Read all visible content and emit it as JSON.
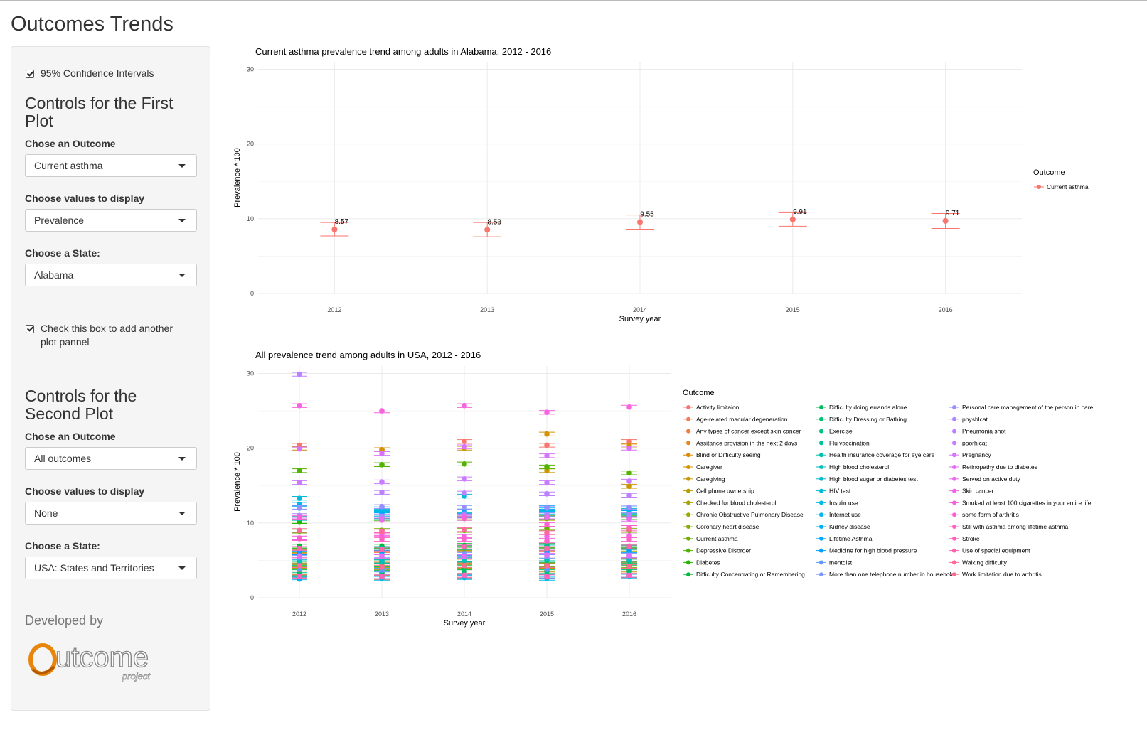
{
  "page": {
    "title": "Outcomes Trends"
  },
  "sidebar": {
    "ci_label": "95% Confidence Intervals",
    "ci_checked": true,
    "first": {
      "heading": "Controls for the First Plot",
      "outcome_label": "Chose an Outcome",
      "outcome_value": "Current asthma",
      "values_label": "Choose values to display",
      "values_value": "Prevalence",
      "state_label": "Choose a State:",
      "state_value": "Alabama"
    },
    "add_plot_label": "Check this box to add another plot pannel",
    "add_plot_checked": true,
    "second": {
      "heading": "Controls for the Second Plot",
      "outcome_label": "Chose an Outcome",
      "outcome_value": "All outcomes",
      "values_label": "Choose values to display",
      "values_value": "None",
      "state_label": "Choose a State:",
      "state_value": "USA: States and Territories"
    },
    "developed_by": "Developed by",
    "logo_text": "utcome",
    "logo_sub": "project",
    "logo_color": "#e8860c"
  },
  "chart_data": [
    {
      "type": "scatter",
      "title": "Current asthma prevalence trend among adults in Alabama, 2012 - 2016",
      "xlabel": "Survey year",
      "ylabel": "Prevalence * 100",
      "x": [
        2012,
        2013,
        2014,
        2015,
        2016
      ],
      "ylim": [
        0,
        31
      ],
      "yticks": [
        0,
        10,
        20,
        30
      ],
      "grid": true,
      "legend_title": "Outcome",
      "legend_position": "right",
      "series": [
        {
          "name": "Current asthma",
          "color": "#F8766D",
          "values": [
            8.57,
            8.53,
            9.55,
            9.91,
            9.71
          ],
          "lower": [
            7.7,
            7.6,
            8.6,
            9.0,
            8.7
          ],
          "upper": [
            9.5,
            9.5,
            10.5,
            10.9,
            10.7
          ],
          "data_labels": [
            "8.57",
            "8.53",
            "9.55",
            "9.91",
            "9.71"
          ]
        }
      ]
    },
    {
      "type": "scatter",
      "title": "All prevalence trend among adults in USA, 2012 - 2016",
      "xlabel": "Survey year",
      "ylabel": "Prevalence * 100",
      "x": [
        2012,
        2013,
        2014,
        2015,
        2016
      ],
      "ylim": [
        0,
        31
      ],
      "yticks": [
        0,
        10,
        20,
        30
      ],
      "grid": true,
      "legend_title": "Outcome",
      "legend_position": "right",
      "series": [
        {
          "name": "Activity limitaion",
          "color": "#F8766D",
          "values": [
            20.4,
            19.8,
            20.9,
            20.4,
            20.9
          ]
        },
        {
          "name": "Age-related macular degeneration",
          "color": "#F57B58",
          "values": [
            2.8,
            2.7,
            2.9,
            2.9,
            2.9
          ]
        },
        {
          "name": "Any types of cancer except skin cancer",
          "color": "#EF7F41",
          "values": [
            6.2,
            6.3,
            6.5,
            6.5,
            6.7
          ]
        },
        {
          "name": "Assitance provision in the next 2 days",
          "color": "#E7851E",
          "values": [
            5.1,
            5.0,
            4.9,
            5.2,
            5.0
          ]
        },
        {
          "name": "Blind or Difficulty seeing",
          "color": "#DE8C00",
          "values": [
            3.3,
            3.3,
            3.5,
            3.7,
            3.7
          ]
        },
        {
          "name": "Caregiver",
          "color": "#D39200",
          "values": [
            20.0,
            19.8,
            20.0,
            21.9,
            20.3
          ]
        },
        {
          "name": "Caregiving",
          "color": "#C79800",
          "values": [
            6.4,
            6.1,
            6.6,
            17.0,
            14.9
          ]
        },
        {
          "name": "Cell phone ownership",
          "color": "#B99E00",
          "values": [
            4.2,
            4.0,
            4.2,
            4.4,
            4.2
          ]
        },
        {
          "name": "Checked for blood cholesterol",
          "color": "#AAA400",
          "values": [
            10.2,
            10.4,
            10.7,
            10.6,
            10.7
          ]
        },
        {
          "name": "Chronic Obstructive Pulmonary Disease",
          "color": "#98A900",
          "values": [
            6.3,
            6.5,
            6.6,
            6.4,
            6.5
          ]
        },
        {
          "name": "Coronary heart disease",
          "color": "#85AD00",
          "values": [
            4.4,
            4.3,
            4.3,
            4.4,
            4.3
          ]
        },
        {
          "name": "Current asthma",
          "color": "#6FB100",
          "values": [
            8.9,
            9.0,
            9.0,
            9.3,
            9.0
          ]
        },
        {
          "name": "Depressive Disorder",
          "color": "#53B400",
          "values": [
            17.0,
            17.8,
            17.9,
            17.5,
            16.7
          ]
        },
        {
          "name": "Diabetes",
          "color": "#1FB700",
          "values": [
            10.2,
            10.6,
            10.6,
            10.7,
            10.7
          ]
        },
        {
          "name": "Difficulty Concentrating or Remembering",
          "color": "#00BA38",
          "values": [
            6.9,
            6.9,
            7.0,
            7.0,
            6.9
          ]
        },
        {
          "name": "Difficulty doing errands alone",
          "color": "#00BC59",
          "values": [
            4.0,
            3.9,
            4.1,
            4.3,
            4.1
          ]
        },
        {
          "name": "Difficulty Dressing or Bathing",
          "color": "#00BE72",
          "values": [
            3.1,
            3.3,
            3.5,
            3.5,
            3.5
          ]
        },
        {
          "name": "Exercise",
          "color": "#00BF87",
          "values": [
            4.6,
            4.8,
            5.1,
            5.0,
            4.9
          ]
        },
        {
          "name": "Flu vaccination",
          "color": "#00C09A",
          "values": [
            6.6,
            6.6,
            6.7,
            6.8,
            6.7
          ]
        },
        {
          "name": "Health insurance coverage for eye care",
          "color": "#00C0AB",
          "values": [
            10.6,
            10.8,
            11.0,
            11.1,
            11.0
          ]
        },
        {
          "name": "High blood cholesterol",
          "color": "#00BFBC",
          "values": [
            4.8,
            4.9,
            5.0,
            5.2,
            5.1
          ]
        },
        {
          "name": "High blood sugar or diabetes test",
          "color": "#00BECB",
          "values": [
            12.0,
            11.6,
            11.6,
            11.6,
            11.7
          ]
        },
        {
          "name": "HIV test",
          "color": "#00BCD9",
          "values": [
            13.3,
            11.3,
            13.6,
            11.4,
            11.4
          ]
        },
        {
          "name": "Insulin use",
          "color": "#00B9E5",
          "values": [
            2.5,
            2.6,
            2.7,
            2.6,
            2.9
          ]
        },
        {
          "name": "Internet use",
          "color": "#00B5F0",
          "values": [
            12.5,
            11.9,
            12.1,
            11.8,
            11.9
          ]
        },
        {
          "name": "Kidney disease",
          "color": "#00B0F6",
          "values": [
            2.7,
            2.8,
            2.8,
            2.9,
            3.0
          ]
        },
        {
          "name": "Lifetime Asthma",
          "color": "#00A9FF",
          "values": [
            12.0,
            11.1,
            11.5,
            12.1,
            11.9
          ]
        },
        {
          "name": "Medicine for high blood pressure",
          "color": "#00A2FF",
          "values": [
            6.0,
            6.1,
            5.9,
            6.1,
            6.3
          ]
        },
        {
          "name": "mentdist",
          "color": "#5E9AFF",
          "values": [
            3.8,
            3.7,
            5.9,
            3.8,
            5.6
          ]
        },
        {
          "name": "More than one telephone number in household",
          "color": "#7F96FF",
          "values": [
            5.4,
            5.6,
            5.8,
            5.5,
            5.7
          ]
        },
        {
          "name": "Personal care management of the person in care",
          "color": "#978EFF",
          "values": [
            12.1,
            12.2,
            12.1,
            12.0,
            12.1
          ]
        },
        {
          "name": "physhlcat",
          "color": "#AC88FF",
          "values": [
            11.0,
            10.9,
            11.2,
            11.1,
            11.1
          ]
        },
        {
          "name": "Pneumonia shot",
          "color": "#BD81FF",
          "values": [
            29.9,
            14.1,
            14.0,
            13.9,
            13.7
          ]
        },
        {
          "name": "poorhlcat",
          "color": "#CB7BFF",
          "values": [
            15.4,
            15.5,
            15.9,
            15.4,
            15.6
          ]
        },
        {
          "name": "Pregnancy",
          "color": "#D774FD",
          "values": [
            19.9,
            19.3,
            20.2,
            19.0,
            20.0
          ]
        },
        {
          "name": "Retinopathy due to diabetes",
          "color": "#E26EF7",
          "values": [
            5.6,
            5.5,
            5.5,
            5.7,
            5.6
          ]
        },
        {
          "name": "Served on active duty",
          "color": "#EB69F0",
          "values": [
            10.8,
            10.4,
            10.9,
            10.8,
            10.5
          ]
        },
        {
          "name": "Skin cancer",
          "color": "#F265E8",
          "values": [
            8.0,
            8.1,
            8.2,
            8.2,
            8.3
          ]
        },
        {
          "name": "Smoked at least 100 cigarettes in your entire life",
          "color": "#F863DF",
          "values": [
            25.7,
            25.0,
            25.7,
            24.8,
            25.5
          ]
        },
        {
          "name": "some form of arthritis",
          "color": "#FC61D4",
          "values": [
            10.7,
            8.5,
            10.6,
            9.8,
            9.4
          ]
        },
        {
          "name": "Still with asthma among lifetime asthma",
          "color": "#FF61C8",
          "values": [
            7.9,
            7.8,
            7.8,
            7.6,
            7.8
          ]
        },
        {
          "name": "Stroke",
          "color": "#FF62BC",
          "values": [
            2.9,
            2.8,
            3.0,
            2.8,
            3.0
          ]
        },
        {
          "name": "Use of special equipment",
          "color": "#FF64AE",
          "values": [
            6.6,
            6.5,
            6.8,
            6.6,
            6.8
          ]
        },
        {
          "name": "Walking difficulty",
          "color": "#FF689F",
          "values": [
            9.0,
            8.9,
            9.1,
            8.7,
            9.2
          ]
        },
        {
          "name": "Work limitation due to arthritis",
          "color": "#FC6E8F",
          "values": [
            4.3,
            4.1,
            4.3,
            4.3,
            4.2
          ]
        }
      ]
    }
  ]
}
